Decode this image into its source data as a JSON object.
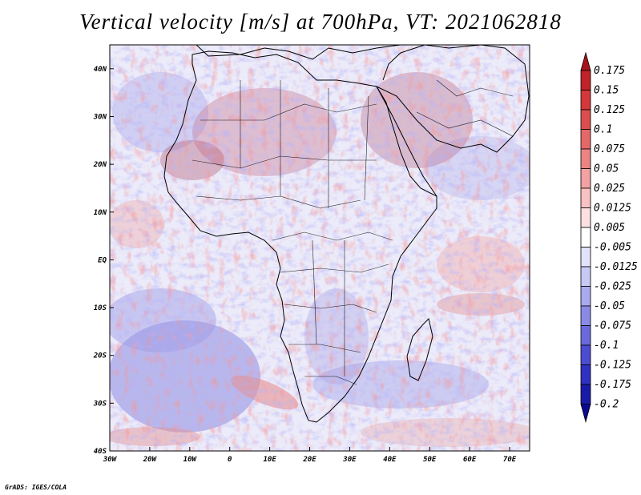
{
  "title": "Vertical velocity [m/s] at 700hPa, VT: 2021062818",
  "credit": "GrADS: IGES/COLA",
  "map": {
    "lon_range": [
      -30,
      75
    ],
    "lat_range": [
      -40,
      45
    ],
    "lon_ticks": [
      {
        "lon": -30,
        "label": "30W"
      },
      {
        "lon": -20,
        "label": "20W"
      },
      {
        "lon": -10,
        "label": "10W"
      },
      {
        "lon": 0,
        "label": "0"
      },
      {
        "lon": 10,
        "label": "10E"
      },
      {
        "lon": 20,
        "label": "20E"
      },
      {
        "lon": 30,
        "label": "30E"
      },
      {
        "lon": 40,
        "label": "40E"
      },
      {
        "lon": 50,
        "label": "50E"
      },
      {
        "lon": 60,
        "label": "60E"
      },
      {
        "lon": 70,
        "label": "70E"
      }
    ],
    "lat_ticks": [
      {
        "lat": 40,
        "label": "40N"
      },
      {
        "lat": 30,
        "label": "30N"
      },
      {
        "lat": 20,
        "label": "20N"
      },
      {
        "lat": 10,
        "label": "10N"
      },
      {
        "lat": 0,
        "label": "EQ"
      },
      {
        "lat": -10,
        "label": "10S"
      },
      {
        "lat": -20,
        "label": "20S"
      },
      {
        "lat": -30,
        "label": "30S"
      },
      {
        "lat": -40,
        "label": "40S"
      }
    ]
  },
  "colorbar": {
    "labels": [
      "0.175",
      "0.15",
      "0.125",
      "0.1",
      "0.075",
      "0.05",
      "0.025",
      "0.0125",
      "0.005",
      "-0.005",
      "-0.0125",
      "-0.025",
      "-0.05",
      "-0.075",
      "-0.1",
      "-0.125",
      "-0.175",
      "-0.2"
    ],
    "colors": [
      "#a8141c",
      "#c02428",
      "#d4383a",
      "#dc4e4e",
      "#e46868",
      "#ec8484",
      "#f2a2a2",
      "#f8c2c2",
      "#fde0e0",
      "#ffffff",
      "#e2e2fa",
      "#c8c8f4",
      "#aaaaee",
      "#8a8ae6",
      "#6a6ade",
      "#4c4cd2",
      "#3030c2",
      "#1a1aa8",
      "#0a0a90"
    ],
    "unit": "m/s"
  }
}
